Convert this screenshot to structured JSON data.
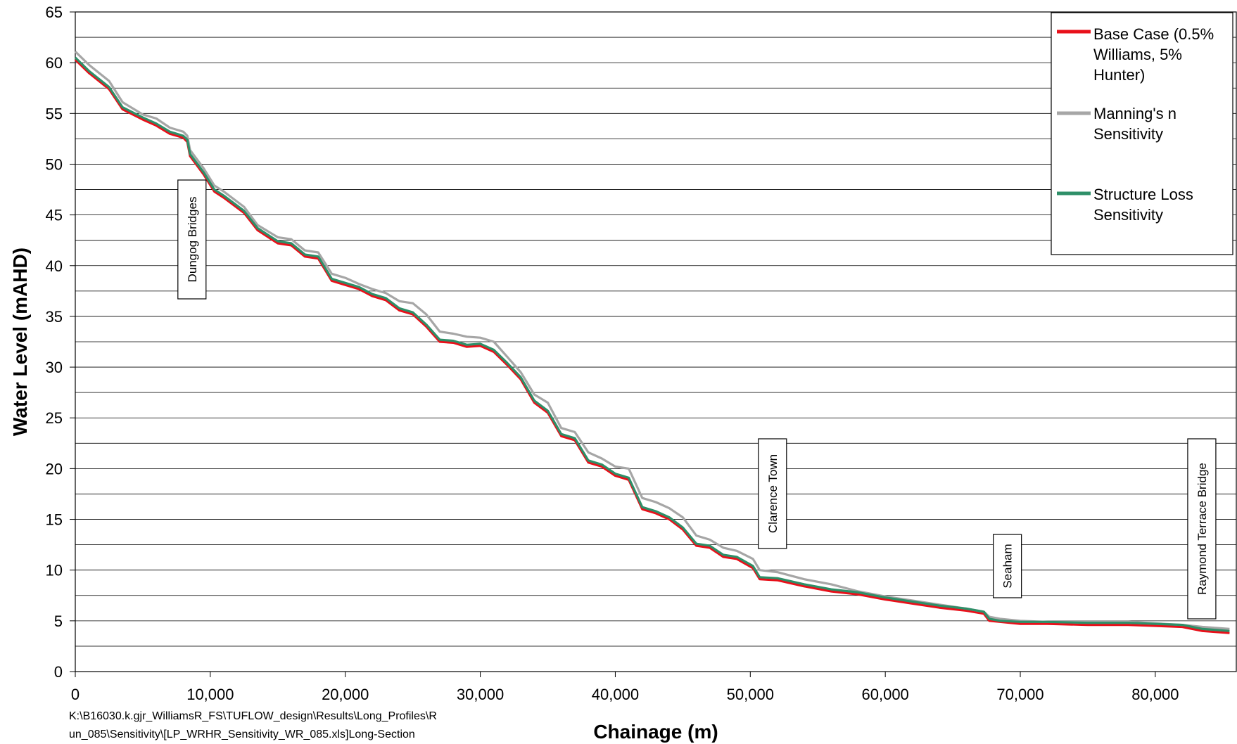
{
  "chart_data": {
    "type": "line",
    "title": "",
    "xlabel": "Chainage (m)",
    "ylabel": "Water Level (mAHD)",
    "xlim": [
      0,
      86000
    ],
    "ylim": [
      0,
      65
    ],
    "x_ticks": [
      0,
      10000,
      20000,
      30000,
      40000,
      50000,
      60000,
      70000,
      80000
    ],
    "x_tick_labels": [
      "0",
      "10,000",
      "20,000",
      "30,000",
      "40,000",
      "50,000",
      "60,000",
      "70,000",
      "80,000"
    ],
    "y_ticks": [
      0,
      5,
      10,
      15,
      20,
      25,
      30,
      35,
      40,
      45,
      50,
      55,
      60,
      65
    ],
    "y_tick_labels": [
      "0",
      "5",
      "10",
      "15",
      "20",
      "25",
      "30",
      "35",
      "40",
      "45",
      "50",
      "55",
      "60",
      "65"
    ],
    "grid": true,
    "legend_position": "top-right",
    "legend_lines": [
      [
        "Base Case (0.5%",
        "Williams, 5%",
        "Hunter)"
      ],
      [
        "Manning's n",
        "Sensitivity"
      ],
      [
        "Structure Loss",
        "Sensitivity"
      ]
    ],
    "series": [
      {
        "name": "Base Case (0.5% Williams, 5% Hunter)",
        "color": "#e8101a",
        "x": [
          0,
          1000,
          2500,
          3500,
          5000,
          6000,
          7000,
          8000,
          8300,
          8500,
          9500,
          10300,
          11000,
          12500,
          13500,
          15000,
          16000,
          17000,
          18000,
          19000,
          20000,
          21000,
          22000,
          23000,
          24000,
          25000,
          26000,
          27000,
          28000,
          29000,
          30000,
          31000,
          32000,
          33000,
          34000,
          35000,
          36000,
          37000,
          38000,
          39000,
          40000,
          41000,
          42000,
          43000,
          44000,
          45000,
          46000,
          47000,
          48000,
          49000,
          50200,
          50700,
          52000,
          54000,
          56000,
          58000,
          60000,
          62000,
          64000,
          66000,
          67300,
          67700,
          68500,
          70000,
          72000,
          75000,
          78000,
          82000,
          83500,
          85500
        ],
        "values": [
          60.3,
          59.0,
          57.4,
          55.4,
          54.4,
          53.8,
          53.0,
          52.6,
          52.2,
          50.8,
          49.0,
          47.3,
          46.7,
          45.2,
          43.5,
          42.2,
          42.0,
          40.9,
          40.7,
          38.5,
          38.1,
          37.7,
          37.0,
          36.6,
          35.6,
          35.2,
          34.0,
          32.5,
          32.4,
          32.0,
          32.1,
          31.5,
          30.2,
          28.8,
          26.5,
          25.5,
          23.2,
          22.8,
          20.6,
          20.2,
          19.3,
          18.9,
          16.0,
          15.6,
          15.0,
          14.0,
          12.4,
          12.2,
          11.3,
          11.1,
          10.2,
          9.1,
          9.0,
          8.4,
          7.9,
          7.6,
          7.1,
          6.7,
          6.3,
          6.0,
          5.7,
          5.0,
          4.9,
          4.7,
          4.7,
          4.6,
          4.6,
          4.4,
          4.0,
          3.8
        ]
      },
      {
        "name": "Manning's n Sensitivity",
        "color": "#a6a6a6",
        "x": [
          0,
          1000,
          2500,
          3500,
          5000,
          6000,
          7000,
          8000,
          8300,
          8500,
          9500,
          10300,
          11000,
          12500,
          13500,
          15000,
          16000,
          17000,
          18000,
          19000,
          20000,
          21000,
          22000,
          23000,
          24000,
          25000,
          26000,
          27000,
          28000,
          29000,
          30000,
          31000,
          32000,
          33000,
          34000,
          35000,
          36000,
          37000,
          38000,
          39000,
          40000,
          41000,
          42000,
          43000,
          44000,
          45000,
          46000,
          47000,
          48000,
          49000,
          50200,
          50700,
          52000,
          54000,
          56000,
          58000,
          60000,
          62000,
          64000,
          66000,
          67300,
          67700,
          68500,
          70000,
          72000,
          75000,
          78000,
          82000,
          83500,
          85500
        ],
        "values": [
          61.1,
          59.8,
          58.2,
          56.1,
          54.9,
          54.5,
          53.6,
          53.2,
          52.8,
          51.4,
          49.6,
          47.9,
          47.3,
          45.8,
          44.0,
          42.8,
          42.6,
          41.5,
          41.3,
          39.2,
          38.8,
          38.2,
          37.7,
          37.3,
          36.5,
          36.3,
          35.2,
          33.5,
          33.3,
          33.0,
          32.9,
          32.5,
          31.0,
          29.5,
          27.3,
          26.5,
          24.0,
          23.6,
          21.6,
          21.0,
          20.2,
          20.0,
          17.1,
          16.7,
          16.1,
          15.2,
          13.4,
          13.0,
          12.2,
          11.9,
          11.1,
          10.0,
          9.8,
          9.1,
          8.6,
          7.9,
          7.4,
          7.0,
          6.6,
          6.2,
          5.9,
          5.4,
          5.2,
          5.0,
          4.9,
          4.9,
          4.9,
          4.6,
          4.4,
          4.2
        ]
      },
      {
        "name": "Structure Loss Sensitivity",
        "color": "#2e8f68",
        "x": [
          0,
          1000,
          2500,
          3500,
          5000,
          6000,
          7000,
          8000,
          8300,
          8500,
          9500,
          10300,
          11000,
          12500,
          13500,
          15000,
          16000,
          17000,
          18000,
          19000,
          20000,
          21000,
          22000,
          23000,
          24000,
          25000,
          26000,
          27000,
          28000,
          29000,
          30000,
          31000,
          32000,
          33000,
          34000,
          35000,
          36000,
          37000,
          38000,
          39000,
          40000,
          41000,
          42000,
          43000,
          44000,
          45000,
          46000,
          47000,
          48000,
          49000,
          50200,
          50700,
          52000,
          54000,
          56000,
          58000,
          60000,
          62000,
          64000,
          66000,
          67300,
          67700,
          68500,
          70000,
          72000,
          75000,
          78000,
          82000,
          83500,
          85500
        ],
        "values": [
          60.5,
          59.2,
          57.6,
          55.6,
          54.6,
          54.0,
          53.2,
          52.8,
          52.4,
          51.0,
          49.2,
          47.5,
          46.9,
          45.4,
          43.7,
          42.4,
          42.2,
          41.1,
          40.9,
          38.7,
          38.3,
          37.9,
          37.2,
          36.8,
          35.8,
          35.4,
          34.2,
          32.7,
          32.6,
          32.2,
          32.3,
          31.7,
          30.4,
          29.0,
          26.7,
          25.7,
          23.4,
          23.0,
          20.8,
          20.4,
          19.5,
          19.1,
          16.2,
          15.8,
          15.2,
          14.2,
          12.6,
          12.4,
          11.5,
          11.3,
          10.4,
          9.3,
          9.2,
          8.6,
          8.1,
          7.8,
          7.3,
          6.9,
          6.5,
          6.2,
          5.9,
          5.2,
          5.0,
          4.9,
          4.9,
          4.8,
          4.8,
          4.6,
          4.2,
          4.0
        ]
      }
    ],
    "annotations": [
      {
        "text": "Dungog Bridges",
        "x": 7600
      },
      {
        "text": "Clarence Town",
        "x": 50600
      },
      {
        "text": "Seaham",
        "x": 68000
      },
      {
        "text": "Raymond Terrace Bridge",
        "x": 82400
      }
    ],
    "source_path": [
      "K:\\B16030.k.gjr_WilliamsR_FS\\TUFLOW_design\\Results\\Long_Profiles\\R",
      "un_085\\Sensitivity\\[LP_WRHR_Sensitivity_WR_085.xls]Long-Section"
    ]
  }
}
